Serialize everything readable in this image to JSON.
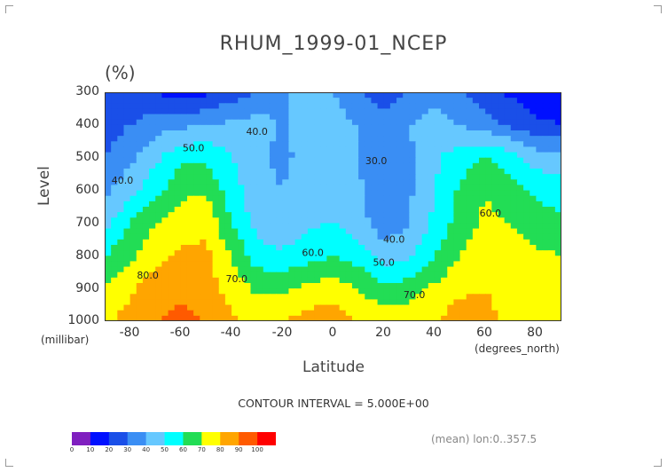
{
  "title": "RHUM_1999-01_NCEP",
  "units": "(%)",
  "ylabel": "Level",
  "yunit": "(millibar)",
  "xlabel": "Latitude",
  "xunit": "(degrees_north)",
  "interval_text": "CONTOUR INTERVAL = 5.000E+00",
  "mean_text": "(mean) lon:0..357.5",
  "chart_data": {
    "type": "heatmap",
    "title": "RHUM_1999-01_NCEP",
    "xlabel": "Latitude",
    "ylabel": "Level",
    "xlim": [
      -90,
      90
    ],
    "ylim": [
      1000,
      300
    ],
    "x_ticks": [
      "-80",
      "-60",
      "-40",
      "-20",
      "0",
      "20",
      "40",
      "60",
      "80"
    ],
    "y_ticks": [
      "300",
      "400",
      "500",
      "600",
      "700",
      "800",
      "900",
      "1000"
    ],
    "levels_mb": [
      300,
      400,
      500,
      600,
      700,
      800,
      900,
      1000
    ],
    "latitudes": [
      -90,
      -80,
      -70,
      -60,
      -50,
      -40,
      -30,
      -20,
      -10,
      0,
      10,
      20,
      30,
      40,
      50,
      60,
      70,
      80,
      90
    ],
    "values": [
      [
        22,
        22,
        20,
        15,
        18,
        25,
        30,
        38,
        45,
        40,
        30,
        25,
        30,
        35,
        30,
        25,
        18,
        15,
        12
      ],
      [
        25,
        30,
        35,
        38,
        40,
        42,
        45,
        38,
        50,
        45,
        40,
        34,
        40,
        45,
        40,
        35,
        28,
        22,
        20
      ],
      [
        30,
        38,
        48,
        58,
        58,
        50,
        45,
        36,
        46,
        48,
        40,
        31,
        38,
        48,
        55,
        60,
        55,
        45,
        45
      ],
      [
        38,
        46,
        56,
        68,
        68,
        55,
        43,
        40,
        48,
        50,
        42,
        31,
        38,
        50,
        62,
        70,
        65,
        58,
        55
      ],
      [
        46,
        60,
        70,
        75,
        78,
        60,
        46,
        42,
        48,
        50,
        45,
        33,
        40,
        52,
        65,
        72,
        70,
        65,
        62
      ],
      [
        60,
        68,
        76,
        82,
        82,
        70,
        55,
        52,
        56,
        60,
        55,
        45,
        48,
        60,
        70,
        76,
        74,
        72,
        70
      ],
      [
        72,
        78,
        86,
        88,
        85,
        76,
        68,
        68,
        72,
        75,
        70,
        62,
        65,
        72,
        78,
        80,
        76,
        74,
        72
      ],
      [
        78,
        84,
        90,
        92,
        90,
        82,
        78,
        80,
        85,
        85,
        80,
        76,
        76,
        80,
        85,
        82,
        78,
        76,
        74
      ]
    ],
    "contour_labels": [
      {
        "text": "40.0",
        "lat": -30,
        "level": 430
      },
      {
        "text": "50.0",
        "lat": -55,
        "level": 480
      },
      {
        "text": "40.0",
        "lat": -83,
        "level": 580
      },
      {
        "text": "30.0",
        "lat": 17,
        "level": 520
      },
      {
        "text": "60.0",
        "lat": 62,
        "level": 680
      },
      {
        "text": "40.0",
        "lat": 24,
        "level": 760
      },
      {
        "text": "50.0",
        "lat": 20,
        "level": 830
      },
      {
        "text": "60.0",
        "lat": -8,
        "level": 800
      },
      {
        "text": "70.0",
        "lat": -38,
        "level": 880
      },
      {
        "text": "80.0",
        "lat": -73,
        "level": 870
      },
      {
        "text": "70.0",
        "lat": 32,
        "level": 930
      }
    ],
    "colorbar": {
      "ticks": [
        "0",
        "10",
        "20",
        "30",
        "40",
        "50",
        "60",
        "70",
        "80",
        "90",
        "100"
      ],
      "colors": [
        "#7f1fbf",
        "#0010ff",
        "#1a4fe8",
        "#3a8ef4",
        "#66c8ff",
        "#00ffff",
        "#22dd55",
        "#ffff00",
        "#ffa500",
        "#ff5a00",
        "#ff0000"
      ]
    },
    "grid": false
  }
}
